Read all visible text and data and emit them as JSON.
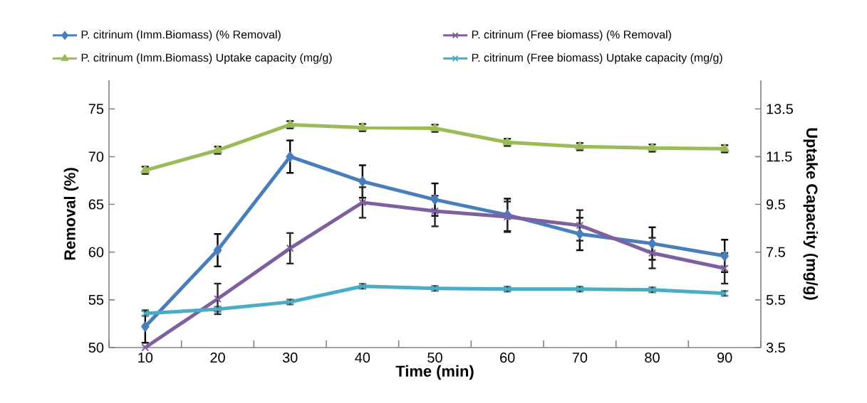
{
  "chart_data": {
    "type": "line",
    "xlabel": "Time (min)",
    "ylabel": "Removal (%)",
    "y2label": "Uptake Capacity (mg/g)",
    "categories": [
      "10",
      "20",
      "30",
      "40",
      "50",
      "60",
      "70",
      "80",
      "90"
    ],
    "ylim": [
      50,
      78
    ],
    "yticks": [
      50,
      55,
      60,
      65,
      70,
      75
    ],
    "y2lim": [
      3.5,
      14.7
    ],
    "y2ticks": [
      3.5,
      5.5,
      7.5,
      9.5,
      11.5,
      13.5
    ],
    "legend": "top",
    "grid": false,
    "line_style": "solid",
    "series": [
      {
        "name": "P. citrinum (Imm.Biomass) (% Removal)",
        "color": "#4a7ebb",
        "marker": "diamond",
        "values": [
          52.2,
          60.2,
          70.0,
          67.4,
          65.5,
          63.9,
          61.9,
          60.9,
          59.6
        ],
        "errors": [
          1.7,
          1.7,
          1.7,
          1.7,
          1.7,
          1.7,
          1.7,
          1.7,
          1.7
        ]
      },
      {
        "name": "P. citrinum  (Free biomass)  (% Removal)",
        "color": "#7e5fa0",
        "marker": "cross",
        "values": [
          50.0,
          55.1,
          60.4,
          65.2,
          64.3,
          63.7,
          62.8,
          59.9,
          58.3
        ],
        "errors": [
          null,
          1.6,
          1.6,
          1.6,
          1.6,
          1.6,
          1.6,
          1.6,
          1.6
        ]
      },
      {
        "name": "P. citrinum  (Imm.Biomass) Uptake capacity (mg/g)",
        "color": "#9bbb59",
        "marker": "triangle",
        "axis": "y2",
        "values": [
          10.93,
          11.77,
          12.84,
          12.72,
          12.69,
          12.1,
          11.92,
          11.86,
          11.83
        ],
        "errors": [
          0.15,
          0.15,
          0.15,
          0.15,
          0.15,
          0.15,
          0.15,
          0.15,
          0.15
        ]
      },
      {
        "name": "P. citrinum  (Free biomass) Uptake capacity (mg/g)",
        "color": "#4bacc6",
        "marker": "cross",
        "axis": "y2",
        "values": [
          4.93,
          5.11,
          5.41,
          6.07,
          5.98,
          5.95,
          5.95,
          5.92,
          5.77
        ],
        "errors": [
          0.1,
          0.1,
          0.1,
          0.1,
          0.1,
          0.1,
          0.1,
          0.1,
          0.1
        ]
      }
    ]
  }
}
